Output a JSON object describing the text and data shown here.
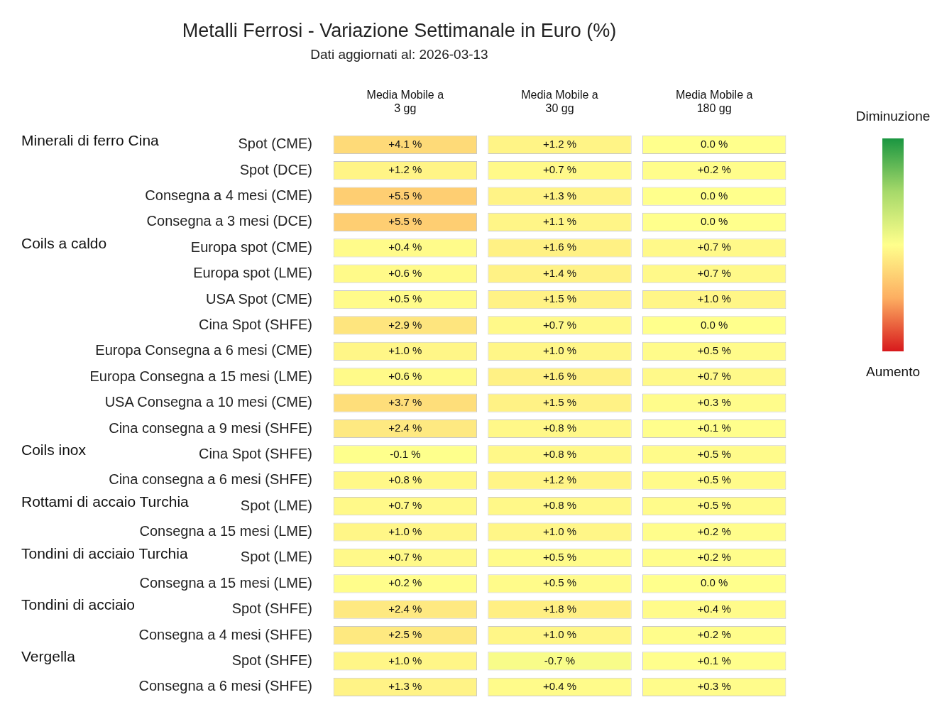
{
  "chart_data": {
    "type": "heatmap",
    "title": "Metalli Ferrosi - Variazione Settimanale in Euro (%)",
    "subtitle": "Dati aggiornati al: 2026-03-13",
    "categories": [
      "Media Mobile a 3 gg",
      "Media Mobile a 30 gg",
      "Media Mobile a 180 gg"
    ],
    "y_categories": [
      "Spot (CME)",
      "Spot (DCE)",
      "Consegna a 4 mesi (CME)",
      "Consegna a 3 mesi (DCE)",
      "Europa spot (CME)",
      "Europa spot (LME)",
      "USA Spot (CME)",
      "Cina Spot (SHFE)",
      "Europa Consegna a 6 mesi (CME)",
      "Europa Consegna a 15 mesi (LME)",
      "USA Consegna a 10 mesi (CME)",
      "Cina consegna a 9 mesi (SHFE)",
      "Cina Spot (SHFE)",
      "Cina consegna a 6 mesi (SHFE)",
      "Spot (LME)",
      "Consegna a 15 mesi (LME)",
      "Spot (LME)",
      "Consegna a 15 mesi (LME)",
      "Spot (SHFE)",
      "Consegna a 4 mesi (SHFE)",
      "Spot (SHFE)",
      "Consegna a 6 mesi (SHFE)"
    ],
    "y2_categories": [
      "Minerali di ferro Cina",
      null,
      null,
      null,
      "Coils a caldo",
      null,
      null,
      null,
      null,
      null,
      null,
      null,
      "Coils inox",
      null,
      "Rottami di accaio Turchia",
      null,
      "Tondini di acciaio Turchia",
      null,
      "Tondini di acciaio",
      null,
      "Vergella",
      null
    ],
    "cells": [
      [
        4.1,
        1.2,
        0.0
      ],
      [
        1.2,
        0.7,
        0.2
      ],
      [
        5.5,
        1.3,
        0.0
      ],
      [
        5.5,
        1.1,
        0.0
      ],
      [
        0.4,
        1.6,
        0.7
      ],
      [
        0.6,
        1.4,
        0.7
      ],
      [
        0.5,
        1.5,
        1.0
      ],
      [
        2.9,
        0.7,
        0.0
      ],
      [
        1.0,
        1.0,
        0.5
      ],
      [
        0.6,
        1.6,
        0.7
      ],
      [
        3.7,
        1.5,
        0.3
      ],
      [
        2.4,
        0.8,
        0.1
      ],
      [
        -0.1,
        0.8,
        0.5
      ],
      [
        0.8,
        1.2,
        0.5
      ],
      [
        0.7,
        0.8,
        0.5
      ],
      [
        1.0,
        1.0,
        0.2
      ],
      [
        0.7,
        0.5,
        0.2
      ],
      [
        0.2,
        0.5,
        0.0
      ],
      [
        2.4,
        1.8,
        0.4
      ],
      [
        2.5,
        1.0,
        0.2
      ],
      [
        1.0,
        -0.7,
        0.1
      ],
      [
        1.3,
        0.4,
        0.3
      ]
    ],
    "cell_labels": [
      [
        "+4.1 %",
        "+1.2 %",
        "0.0 %"
      ],
      [
        "+1.2 %",
        "+0.7 %",
        "+0.2 %"
      ],
      [
        "+5.5 %",
        "+1.3 %",
        "0.0 %"
      ],
      [
        "+5.5 %",
        "+1.1 %",
        "0.0 %"
      ],
      [
        "+0.4 %",
        "+1.6 %",
        "+0.7 %"
      ],
      [
        "+0.6 %",
        "+1.4 %",
        "+0.7 %"
      ],
      [
        "+0.5 %",
        "+1.5 %",
        "+1.0 %"
      ],
      [
        "+2.9 %",
        "+0.7 %",
        "0.0 %"
      ],
      [
        "+1.0 %",
        "+1.0 %",
        "+0.5 %"
      ],
      [
        "+0.6 %",
        "+1.6 %",
        "+0.7 %"
      ],
      [
        "+3.7 %",
        "+1.5 %",
        "+0.3 %"
      ],
      [
        "+2.4 %",
        "+0.8 %",
        "+0.1 %"
      ],
      [
        "-0.1 %",
        "+0.8 %",
        "+0.5 %"
      ],
      [
        "+0.8 %",
        "+1.2 %",
        "+0.5 %"
      ],
      [
        "+0.7 %",
        "+0.8 %",
        "+0.5 %"
      ],
      [
        "+1.0 %",
        "+1.0 %",
        "+0.2 %"
      ],
      [
        "+0.7 %",
        "+0.5 %",
        "+0.2 %"
      ],
      [
        "+0.2 %",
        "+0.5 %",
        "0.0 %"
      ],
      [
        "+2.4 %",
        "+1.8 %",
        "+0.4 %"
      ],
      [
        "+2.5 %",
        "+1.0 %",
        "+0.2 %"
      ],
      [
        "+1.0 %",
        "-0.7 %",
        "+0.1 %"
      ],
      [
        "+1.3 %",
        "+0.4 %",
        "+0.3 %"
      ]
    ],
    "annotations": [
      "Diminuzione",
      "Aumento"
    ]
  }
}
